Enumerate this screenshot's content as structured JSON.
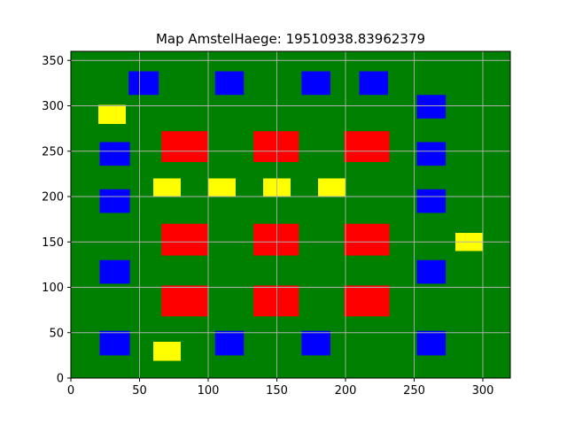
{
  "chart_data": {
    "type": "heatmap",
    "title": "Map AmstelHaege: 19510938.83962379",
    "xlabel": "",
    "ylabel": "",
    "xlim": [
      0,
      320
    ],
    "ylim": [
      0,
      360
    ],
    "xticks": [
      0,
      50,
      100,
      150,
      200,
      250,
      300
    ],
    "yticks": [
      0,
      50,
      100,
      150,
      200,
      250,
      300,
      350
    ],
    "grid": true,
    "background_color": "#008000",
    "colors": {
      "blue": "#0000ff",
      "red": "#ff0000",
      "yellow": "#ffff00",
      "grid": "#b0b0b0"
    },
    "rectangles": [
      {
        "color": "blue",
        "x0": 42,
        "x1": 64,
        "y0": 312,
        "y1": 338
      },
      {
        "color": "blue",
        "x0": 105,
        "x1": 126,
        "y0": 312,
        "y1": 338
      },
      {
        "color": "blue",
        "x0": 168,
        "x1": 189,
        "y0": 312,
        "y1": 338
      },
      {
        "color": "blue",
        "x0": 210,
        "x1": 231,
        "y0": 312,
        "y1": 338
      },
      {
        "color": "blue",
        "x0": 252,
        "x1": 273,
        "y0": 286,
        "y1": 312
      },
      {
        "color": "blue",
        "x0": 21,
        "x1": 43,
        "y0": 234,
        "y1": 260
      },
      {
        "color": "blue",
        "x0": 252,
        "x1": 273,
        "y0": 234,
        "y1": 260
      },
      {
        "color": "blue",
        "x0": 21,
        "x1": 43,
        "y0": 182,
        "y1": 208
      },
      {
        "color": "blue",
        "x0": 252,
        "x1": 273,
        "y0": 182,
        "y1": 208
      },
      {
        "color": "blue",
        "x0": 21,
        "x1": 43,
        "y0": 104,
        "y1": 130
      },
      {
        "color": "blue",
        "x0": 252,
        "x1": 273,
        "y0": 104,
        "y1": 130
      },
      {
        "color": "blue",
        "x0": 21,
        "x1": 43,
        "y0": 25,
        "y1": 52
      },
      {
        "color": "blue",
        "x0": 105,
        "x1": 126,
        "y0": 25,
        "y1": 52
      },
      {
        "color": "blue",
        "x0": 168,
        "x1": 189,
        "y0": 25,
        "y1": 52
      },
      {
        "color": "blue",
        "x0": 252,
        "x1": 273,
        "y0": 25,
        "y1": 52
      },
      {
        "color": "red",
        "x0": 66,
        "x1": 100,
        "y0": 238,
        "y1": 272
      },
      {
        "color": "red",
        "x0": 133,
        "x1": 166,
        "y0": 238,
        "y1": 272
      },
      {
        "color": "red",
        "x0": 199,
        "x1": 232,
        "y0": 238,
        "y1": 272
      },
      {
        "color": "red",
        "x0": 66,
        "x1": 100,
        "y0": 135,
        "y1": 170
      },
      {
        "color": "red",
        "x0": 133,
        "x1": 166,
        "y0": 135,
        "y1": 170
      },
      {
        "color": "red",
        "x0": 199,
        "x1": 232,
        "y0": 135,
        "y1": 170
      },
      {
        "color": "red",
        "x0": 66,
        "x1": 100,
        "y0": 68,
        "y1": 102
      },
      {
        "color": "red",
        "x0": 133,
        "x1": 166,
        "y0": 68,
        "y1": 102
      },
      {
        "color": "red",
        "x0": 199,
        "x1": 232,
        "y0": 68,
        "y1": 102
      },
      {
        "color": "yellow",
        "x0": 20,
        "x1": 40,
        "y0": 280,
        "y1": 301
      },
      {
        "color": "yellow",
        "x0": 60,
        "x1": 80,
        "y0": 200,
        "y1": 220
      },
      {
        "color": "yellow",
        "x0": 100,
        "x1": 120,
        "y0": 200,
        "y1": 220
      },
      {
        "color": "yellow",
        "x0": 140,
        "x1": 160,
        "y0": 200,
        "y1": 220
      },
      {
        "color": "yellow",
        "x0": 180,
        "x1": 200,
        "y0": 200,
        "y1": 220
      },
      {
        "color": "yellow",
        "x0": 280,
        "x1": 300,
        "y0": 140,
        "y1": 160
      },
      {
        "color": "yellow",
        "x0": 60,
        "x1": 80,
        "y0": 19,
        "y1": 40
      }
    ]
  }
}
